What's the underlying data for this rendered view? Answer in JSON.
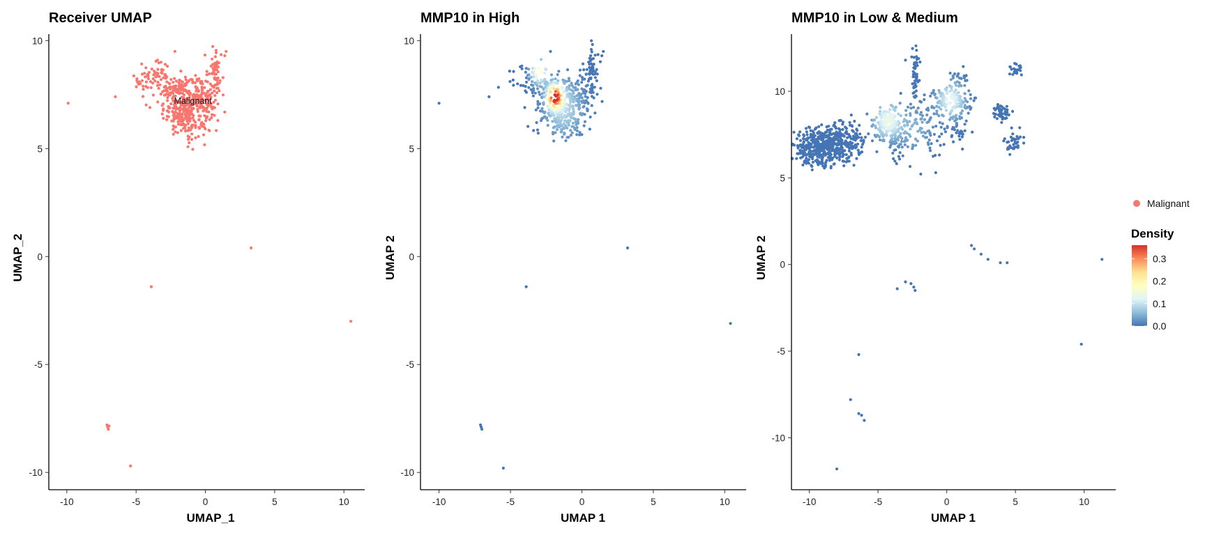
{
  "chart_data": [
    {
      "type": "scatter",
      "title": "Receiver UMAP",
      "xlabel": "UMAP_1",
      "ylabel": "UMAP_2",
      "xlim": [
        -11.3,
        11.5
      ],
      "ylim": [
        -10.8,
        10.3
      ],
      "xticks": [
        -10,
        -5,
        0,
        5,
        10
      ],
      "yticks": [
        -10,
        -5,
        0,
        5,
        10
      ],
      "color_mode": "cluster",
      "point_color": "#F8766D",
      "cluster_labels": [
        {
          "text": "Malignant",
          "x": -0.9,
          "y": 7.2
        }
      ],
      "main_cloud": {
        "count": 560,
        "blobs": [
          {
            "x": -1.3,
            "y": 6.8,
            "sx": 0.85,
            "sy": 0.6,
            "w": 0.55
          },
          {
            "x": -0.1,
            "y": 7.5,
            "sx": 0.5,
            "sy": 0.45,
            "w": 0.12
          },
          {
            "x": -3.7,
            "y": 8.2,
            "sx": 0.75,
            "sy": 0.35,
            "w": 0.12
          },
          {
            "x": -2.2,
            "y": 7.8,
            "sx": 0.6,
            "sy": 0.3,
            "w": 0.11
          },
          {
            "x": 0.7,
            "y": 8.6,
            "sx": 0.25,
            "sy": 0.55,
            "w": 0.1
          }
        ]
      },
      "points": [
        [
          -9.9,
          7.1
        ],
        [
          -6.5,
          7.4
        ],
        [
          -4.0,
          6.9
        ],
        [
          -2.2,
          9.5
        ],
        [
          1.5,
          9.5
        ],
        [
          1.4,
          9.3
        ],
        [
          -3.2,
          9.0
        ],
        [
          -2.9,
          8.9
        ],
        [
          3.3,
          0.4
        ],
        [
          -3.9,
          -1.4
        ],
        [
          10.5,
          -3.0
        ],
        [
          -7.1,
          -7.8
        ],
        [
          -7.05,
          -7.9
        ],
        [
          -7.0,
          -8.0
        ],
        [
          -6.95,
          -7.85
        ],
        [
          -5.4,
          -9.7
        ]
      ]
    },
    {
      "type": "scatter",
      "title": "MMP10 in High",
      "xlabel": "UMAP 1",
      "ylabel": "UMAP 2",
      "xlim": [
        -11.3,
        11.5
      ],
      "ylim": [
        -10.8,
        10.3
      ],
      "xticks": [
        -10,
        -5,
        0,
        5,
        10
      ],
      "yticks": [
        -10,
        -5,
        0,
        5,
        10
      ],
      "color_mode": "density",
      "density_hotspots": [
        {
          "x": -1.9,
          "y": 7.4,
          "s": 0.35,
          "peak": 0.35
        },
        {
          "x": -3.0,
          "y": 8.6,
          "s": 0.4,
          "peak": 0.18
        },
        {
          "x": -1.3,
          "y": 6.9,
          "s": 0.9,
          "peak": 0.09
        }
      ],
      "main_cloud": {
        "count": 560,
        "blobs": [
          {
            "x": -1.3,
            "y": 6.8,
            "sx": 0.85,
            "sy": 0.6,
            "w": 0.55
          },
          {
            "x": -0.1,
            "y": 7.5,
            "sx": 0.5,
            "sy": 0.45,
            "w": 0.12
          },
          {
            "x": -3.7,
            "y": 8.2,
            "sx": 0.75,
            "sy": 0.35,
            "w": 0.12
          },
          {
            "x": -2.2,
            "y": 7.8,
            "sx": 0.6,
            "sy": 0.3,
            "w": 0.11
          },
          {
            "x": 0.7,
            "y": 8.6,
            "sx": 0.25,
            "sy": 0.55,
            "w": 0.1
          }
        ]
      },
      "points": [
        [
          -10.0,
          7.1
        ],
        [
          -6.5,
          7.4
        ],
        [
          -4.0,
          6.9
        ],
        [
          -2.2,
          9.5
        ],
        [
          1.5,
          9.5
        ],
        [
          1.4,
          9.3
        ],
        [
          3.2,
          0.4
        ],
        [
          -3.9,
          -1.4
        ],
        [
          10.4,
          -3.1
        ],
        [
          -7.1,
          -7.8
        ],
        [
          -7.05,
          -7.9
        ],
        [
          -7.0,
          -8.0
        ],
        [
          -5.5,
          -9.8
        ]
      ]
    },
    {
      "type": "scatter",
      "title": "MMP10 in Low & Medium",
      "xlabel": "UMAP 1",
      "ylabel": "UMAP 2",
      "xlim": [
        -11.3,
        12.3
      ],
      "ylim": [
        -13.0,
        13.3
      ],
      "xticks": [
        -10,
        -5,
        0,
        5,
        10
      ],
      "yticks": [
        -10,
        -5,
        0,
        5,
        10
      ],
      "color_mode": "density",
      "density_hotspots": [
        {
          "x": 0.3,
          "y": 9.5,
          "s": 0.7,
          "peak": 0.13
        },
        {
          "x": -4.3,
          "y": 8.3,
          "s": 0.7,
          "peak": 0.14
        },
        {
          "x": -2.3,
          "y": 7.8,
          "s": 0.9,
          "peak": 0.05
        }
      ],
      "main_cloud": {
        "count": 1250,
        "blobs": [
          {
            "x": -9.0,
            "y": 6.8,
            "sx": 1.0,
            "sy": 0.55,
            "w": 0.38
          },
          {
            "x": -7.6,
            "y": 7.3,
            "sx": 0.8,
            "sy": 0.5,
            "w": 0.08
          },
          {
            "x": -4.3,
            "y": 8.0,
            "sx": 0.55,
            "sy": 0.5,
            "w": 0.1
          },
          {
            "x": -3.7,
            "y": 7.0,
            "sx": 0.35,
            "sy": 0.5,
            "w": 0.03
          },
          {
            "x": -2.2,
            "y": 7.8,
            "sx": 1.3,
            "sy": 0.9,
            "w": 0.12
          },
          {
            "x": 0.3,
            "y": 9.5,
            "sx": 0.85,
            "sy": 0.45,
            "w": 0.11
          },
          {
            "x": -2.3,
            "y": 10.7,
            "sx": 0.12,
            "sy": 0.8,
            "w": 0.04
          },
          {
            "x": 0.8,
            "y": 8.0,
            "sx": 0.3,
            "sy": 0.7,
            "w": 0.03
          },
          {
            "x": 4.0,
            "y": 8.8,
            "sx": 0.3,
            "sy": 0.25,
            "w": 0.04
          },
          {
            "x": 5.0,
            "y": 7.0,
            "sx": 0.4,
            "sy": 0.35,
            "w": 0.03
          },
          {
            "x": 5.0,
            "y": 11.3,
            "sx": 0.25,
            "sy": 0.3,
            "w": 0.02
          },
          {
            "x": 0.9,
            "y": 10.7,
            "sx": 0.3,
            "sy": 0.3,
            "w": 0.02
          }
        ]
      },
      "points": [
        [
          1.8,
          1.1
        ],
        [
          2.0,
          0.9
        ],
        [
          2.5,
          0.6
        ],
        [
          3.0,
          0.3
        ],
        [
          3.9,
          0.1
        ],
        [
          4.4,
          0.1
        ],
        [
          -3.6,
          -1.4
        ],
        [
          -3.0,
          -1.0
        ],
        [
          -2.6,
          -1.1
        ],
        [
          -2.3,
          -1.5
        ],
        [
          -2.4,
          -1.3
        ],
        [
          11.3,
          0.3
        ],
        [
          9.8,
          -4.6
        ],
        [
          -6.4,
          -5.2
        ],
        [
          -7.0,
          -7.8
        ],
        [
          -6.4,
          -8.6
        ],
        [
          -6.2,
          -8.7
        ],
        [
          -6.0,
          -9.0
        ],
        [
          -8.0,
          -11.8
        ],
        [
          -0.8,
          5.3
        ],
        [
          -5.2,
          8.0
        ],
        [
          -3.0,
          11.8
        ],
        [
          -2.2,
          12.0
        ]
      ]
    }
  ],
  "legend": {
    "cluster_entries": [
      {
        "label": "Malignant",
        "color": "#F8766D"
      }
    ],
    "density_title": "Density",
    "density_ticks": [
      0.0,
      0.1,
      0.2,
      0.3
    ],
    "density_max": 0.36,
    "colorscale": [
      "#4575B4",
      "#91BFDB",
      "#E0F3F8",
      "#FFFFBF",
      "#FEE090",
      "#FC8D59",
      "#D73027"
    ]
  }
}
